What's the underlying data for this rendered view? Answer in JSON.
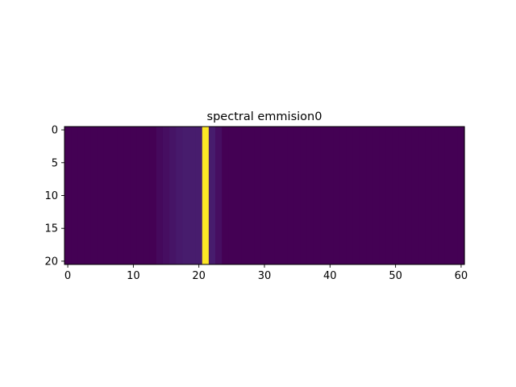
{
  "chart_data": {
    "type": "heatmap",
    "title": "spectral emmision0",
    "xlabel": "",
    "ylabel": "",
    "columns": 61,
    "rows": 21,
    "xlim": [
      -0.5,
      60.5
    ],
    "ylim": [
      20.5,
      -0.5
    ],
    "x_ticks": [
      0,
      10,
      20,
      30,
      40,
      50,
      60
    ],
    "y_ticks": [
      0,
      5,
      10,
      15,
      20
    ],
    "x_tick_labels": [
      "0",
      "10",
      "20",
      "30",
      "40",
      "50",
      "60"
    ],
    "y_tick_labels": [
      "0",
      "5",
      "10",
      "15",
      "20"
    ],
    "colormap": "viridis",
    "grid": false,
    "column_values": [
      0.0,
      0.0,
      0.0,
      0.0,
      0.0,
      0.0,
      0.0,
      0.0,
      0.0,
      0.0,
      0.0,
      0.0,
      0.0,
      0.0,
      0.03,
      0.05,
      0.07,
      0.09,
      0.1,
      0.1,
      0.1,
      1.0,
      0.1,
      0.05,
      0.0,
      0.0,
      0.0,
      0.0,
      0.0,
      0.0,
      0.0,
      0.0,
      0.0,
      0.0,
      0.0,
      0.0,
      0.0,
      0.0,
      0.0,
      0.0,
      0.0,
      0.0,
      0.0,
      0.0,
      0.0,
      0.0,
      0.0,
      0.0,
      0.0,
      0.0,
      0.0,
      0.0,
      0.0,
      0.0,
      0.0,
      0.0,
      0.0,
      0.0,
      0.0,
      0.0,
      0.0
    ]
  }
}
